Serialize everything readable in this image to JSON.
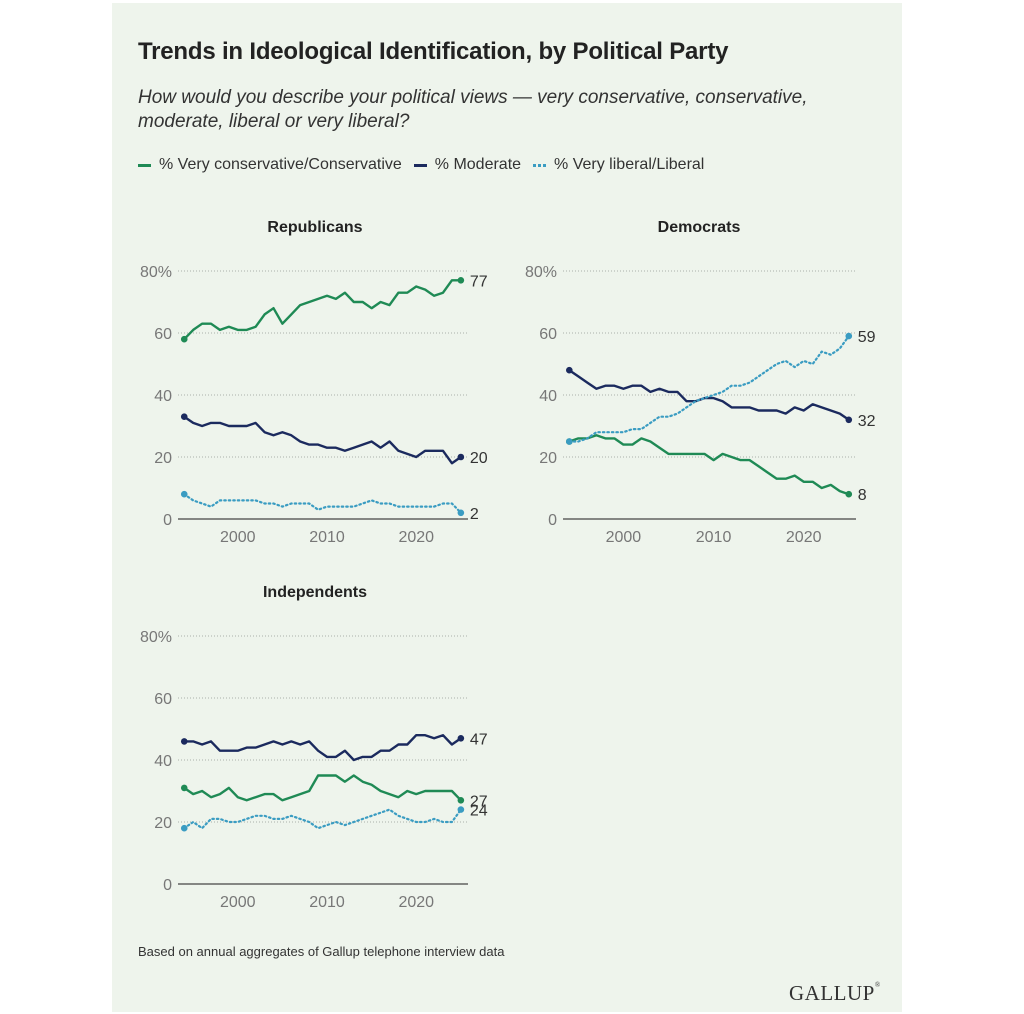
{
  "title": "Trends in Ideological Identification, by Political Party",
  "subtitle": "How would you describe your political views — very conservative, conservative, moderate, liberal or very liberal?",
  "legend": {
    "conservative": "% Very conservative/Conservative",
    "moderate": "% Moderate",
    "liberal": "% Very liberal/Liberal"
  },
  "footnote": "Based on annual aggregates of Gallup telephone interview data",
  "logo": "GALLUP",
  "colors": {
    "conservative": "#1f8a55",
    "moderate": "#1b2a5e",
    "liberal": "#3a9cc2",
    "axis": "#444444",
    "tick": "#777777"
  },
  "chart_data": [
    {
      "type": "line",
      "title": "Republicans",
      "ylim": [
        0,
        80
      ],
      "yticks": [
        0,
        20,
        40,
        60,
        80
      ],
      "ytick_labels": [
        "0",
        "20",
        "40",
        "60",
        "80%"
      ],
      "xticks": [
        2000,
        2010,
        2020
      ],
      "xlim": [
        1993.3,
        2025.8
      ],
      "series": [
        {
          "name": "% Very conservative/Conservative",
          "key": "conservative",
          "end_label": "77",
          "x": [
            1994,
            1995,
            1996,
            1997,
            1998,
            1999,
            2000,
            2001,
            2002,
            2003,
            2004,
            2005,
            2006,
            2007,
            2008,
            2009,
            2010,
            2011,
            2012,
            2013,
            2014,
            2015,
            2016,
            2017,
            2018,
            2019,
            2020,
            2021,
            2022,
            2023,
            2024,
            2025
          ],
          "y": [
            58,
            61,
            63,
            63,
            61,
            62,
            61,
            61,
            62,
            66,
            68,
            63,
            66,
            69,
            70,
            71,
            72,
            71,
            73,
            70,
            70,
            68,
            70,
            69,
            73,
            73,
            75,
            74,
            72,
            73,
            77,
            77
          ]
        },
        {
          "name": "% Moderate",
          "key": "moderate",
          "end_label": "20",
          "x": [
            1994,
            1995,
            1996,
            1997,
            1998,
            1999,
            2000,
            2001,
            2002,
            2003,
            2004,
            2005,
            2006,
            2007,
            2008,
            2009,
            2010,
            2011,
            2012,
            2013,
            2014,
            2015,
            2016,
            2017,
            2018,
            2019,
            2020,
            2021,
            2022,
            2023,
            2024,
            2025
          ],
          "y": [
            33,
            31,
            30,
            31,
            31,
            30,
            30,
            30,
            31,
            28,
            27,
            28,
            27,
            25,
            24,
            24,
            23,
            23,
            22,
            23,
            24,
            25,
            23,
            25,
            22,
            21,
            20,
            22,
            22,
            22,
            18,
            20
          ]
        },
        {
          "name": "% Very liberal/Liberal",
          "key": "liberal",
          "end_label": "2",
          "x": [
            1994,
            1995,
            1996,
            1997,
            1998,
            1999,
            2000,
            2001,
            2002,
            2003,
            2004,
            2005,
            2006,
            2007,
            2008,
            2009,
            2010,
            2011,
            2012,
            2013,
            2014,
            2015,
            2016,
            2017,
            2018,
            2019,
            2020,
            2021,
            2022,
            2023,
            2024,
            2025
          ],
          "y": [
            8,
            6,
            5,
            4,
            6,
            6,
            6,
            6,
            6,
            5,
            5,
            4,
            5,
            5,
            5,
            3,
            4,
            4,
            4,
            4,
            5,
            6,
            5,
            5,
            4,
            4,
            4,
            4,
            4,
            5,
            5,
            2
          ]
        }
      ]
    },
    {
      "type": "line",
      "title": "Democrats",
      "ylim": [
        0,
        80
      ],
      "yticks": [
        0,
        20,
        40,
        60,
        80
      ],
      "ytick_labels": [
        "0",
        "20",
        "40",
        "60",
        "80%"
      ],
      "xticks": [
        2000,
        2010,
        2020
      ],
      "xlim": [
        1993.3,
        2025.8
      ],
      "series": [
        {
          "name": "% Very conservative/Conservative",
          "key": "conservative",
          "end_label": "8",
          "x": [
            1994,
            1995,
            1996,
            1997,
            1998,
            1999,
            2000,
            2001,
            2002,
            2003,
            2004,
            2005,
            2006,
            2007,
            2008,
            2009,
            2010,
            2011,
            2012,
            2013,
            2014,
            2015,
            2016,
            2017,
            2018,
            2019,
            2020,
            2021,
            2022,
            2023,
            2024,
            2025
          ],
          "y": [
            25,
            26,
            26,
            27,
            26,
            26,
            24,
            24,
            26,
            25,
            23,
            21,
            21,
            21,
            21,
            21,
            19,
            21,
            20,
            19,
            19,
            17,
            15,
            13,
            13,
            14,
            12,
            12,
            10,
            11,
            9,
            8
          ]
        },
        {
          "name": "% Moderate",
          "key": "moderate",
          "end_label": "32",
          "x": [
            1994,
            1995,
            1996,
            1997,
            1998,
            1999,
            2000,
            2001,
            2002,
            2003,
            2004,
            2005,
            2006,
            2007,
            2008,
            2009,
            2010,
            2011,
            2012,
            2013,
            2014,
            2015,
            2016,
            2017,
            2018,
            2019,
            2020,
            2021,
            2022,
            2023,
            2024,
            2025
          ],
          "y": [
            48,
            46,
            44,
            42,
            43,
            43,
            42,
            43,
            43,
            41,
            42,
            41,
            41,
            38,
            38,
            39,
            39,
            38,
            36,
            36,
            36,
            35,
            35,
            35,
            34,
            36,
            35,
            37,
            36,
            35,
            34,
            32
          ]
        },
        {
          "name": "% Very liberal/Liberal",
          "key": "liberal",
          "end_label": "59",
          "x": [
            1994,
            1995,
            1996,
            1997,
            1998,
            1999,
            2000,
            2001,
            2002,
            2003,
            2004,
            2005,
            2006,
            2007,
            2008,
            2009,
            2010,
            2011,
            2012,
            2013,
            2014,
            2015,
            2016,
            2017,
            2018,
            2019,
            2020,
            2021,
            2022,
            2023,
            2024,
            2025
          ],
          "y": [
            25,
            25,
            26,
            28,
            28,
            28,
            28,
            29,
            29,
            31,
            33,
            33,
            34,
            36,
            38,
            39,
            40,
            41,
            43,
            43,
            44,
            46,
            48,
            50,
            51,
            49,
            51,
            50,
            54,
            53,
            55,
            59
          ]
        }
      ]
    },
    {
      "type": "line",
      "title": "Independents",
      "ylim": [
        0,
        80
      ],
      "yticks": [
        0,
        20,
        40,
        60,
        80
      ],
      "ytick_labels": [
        "0",
        "20",
        "40",
        "60",
        "80%"
      ],
      "xticks": [
        2000,
        2010,
        2020
      ],
      "xlim": [
        1993.3,
        2025.8
      ],
      "series": [
        {
          "name": "% Very conservative/Conservative",
          "key": "conservative",
          "end_label": "27",
          "x": [
            1994,
            1995,
            1996,
            1997,
            1998,
            1999,
            2000,
            2001,
            2002,
            2003,
            2004,
            2005,
            2006,
            2007,
            2008,
            2009,
            2010,
            2011,
            2012,
            2013,
            2014,
            2015,
            2016,
            2017,
            2018,
            2019,
            2020,
            2021,
            2022,
            2023,
            2024,
            2025
          ],
          "y": [
            31,
            29,
            30,
            28,
            29,
            31,
            28,
            27,
            28,
            29,
            29,
            27,
            28,
            29,
            30,
            35,
            35,
            35,
            33,
            35,
            33,
            32,
            30,
            29,
            28,
            30,
            29,
            30,
            30,
            30,
            30,
            27
          ]
        },
        {
          "name": "% Moderate",
          "key": "moderate",
          "end_label": "47",
          "x": [
            1994,
            1995,
            1996,
            1997,
            1998,
            1999,
            2000,
            2001,
            2002,
            2003,
            2004,
            2005,
            2006,
            2007,
            2008,
            2009,
            2010,
            2011,
            2012,
            2013,
            2014,
            2015,
            2016,
            2017,
            2018,
            2019,
            2020,
            2021,
            2022,
            2023,
            2024,
            2025
          ],
          "y": [
            46,
            46,
            45,
            46,
            43,
            43,
            43,
            44,
            44,
            45,
            46,
            45,
            46,
            45,
            46,
            43,
            41,
            41,
            43,
            40,
            41,
            41,
            43,
            43,
            45,
            45,
            48,
            48,
            47,
            48,
            45,
            47
          ]
        },
        {
          "name": "% Very liberal/Liberal",
          "key": "liberal",
          "end_label": "24",
          "x": [
            1994,
            1995,
            1996,
            1997,
            1998,
            1999,
            2000,
            2001,
            2002,
            2003,
            2004,
            2005,
            2006,
            2007,
            2008,
            2009,
            2010,
            2011,
            2012,
            2013,
            2014,
            2015,
            2016,
            2017,
            2018,
            2019,
            2020,
            2021,
            2022,
            2023,
            2024,
            2025
          ],
          "y": [
            18,
            20,
            18,
            21,
            21,
            20,
            20,
            21,
            22,
            22,
            21,
            21,
            22,
            21,
            20,
            18,
            19,
            20,
            19,
            20,
            21,
            22,
            23,
            24,
            22,
            21,
            20,
            20,
            21,
            20,
            20,
            24
          ]
        }
      ]
    }
  ]
}
